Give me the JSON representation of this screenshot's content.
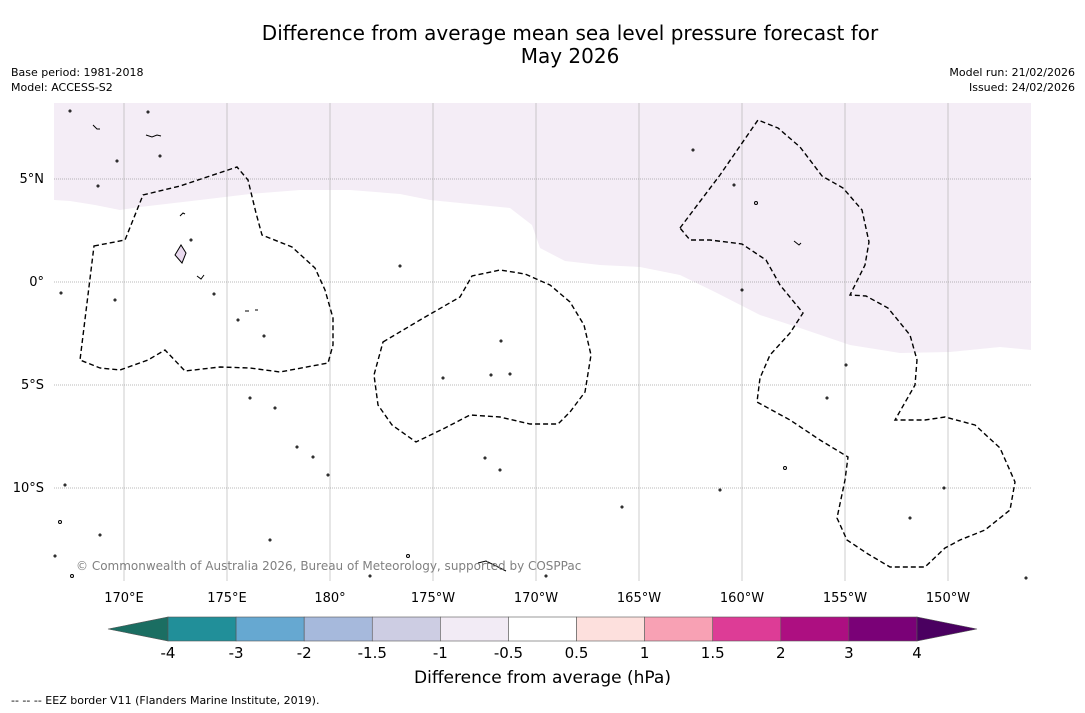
{
  "title": {
    "line1": "Difference from average mean sea level pressure forecast for",
    "line2": "May 2026"
  },
  "base_period": "Base period: 1981-2018",
  "model": "Model: ACCESS-S2",
  "model_run": "Model run: 21/02/2026",
  "issued": "Issued: 24/02/2026",
  "copyright": "© Commonwealth of Australia 2026, Bureau of Meteorology, supported by COSPPac",
  "lat_labels": [
    "5°N",
    "0°",
    "5°S",
    "10°S"
  ],
  "lon_labels": [
    "170°E",
    "175°E",
    "180°",
    "175°W",
    "170°W",
    "165°W",
    "160°W",
    "155°W",
    "150°W"
  ],
  "colorbar": {
    "title": "Difference from average (hPa)",
    "ticks": [
      "-4",
      "-3",
      "-2",
      "-1.5",
      "-1",
      "-0.5",
      "0.5",
      "1",
      "1.5",
      "2",
      "3",
      "4"
    ],
    "colors": [
      "#1b6e62",
      "#218f99",
      "#66a8d1",
      "#a6b9dc",
      "#cdcde3",
      "#f2ebf5",
      "#ffffff",
      "#fde0dd",
      "#f8a1b4",
      "#dd3c96",
      "#ad0f81",
      "#7a0177",
      "#4a0060"
    ]
  },
  "footnote": "--  --  -- EEZ border V11 (Flanders Marine Institute, 2019)."
}
